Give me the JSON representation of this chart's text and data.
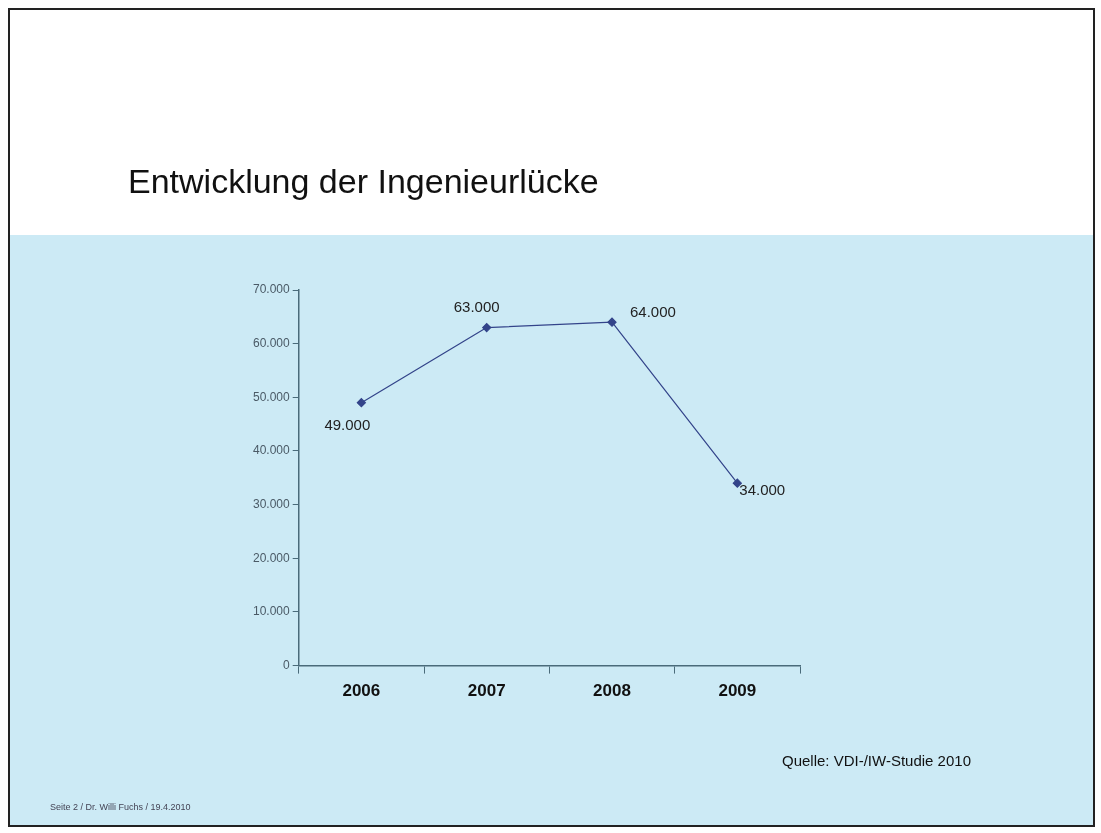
{
  "chart_data": {
    "type": "line",
    "title": "Entwicklung der Ingenieurlücke",
    "categories": [
      "2006",
      "2007",
      "2008",
      "2009"
    ],
    "values": [
      49000,
      63000,
      64000,
      34000
    ],
    "value_labels": [
      "49.000",
      "63.000",
      "64.000",
      "34.000"
    ],
    "color": "#33448a",
    "marker": "diamond",
    "line_style": "solid",
    "grid": false,
    "legend": false,
    "ylim": [
      0,
      70000
    ],
    "yticks": [
      0,
      {
        "value": 10000,
        "label": "10.000"
      },
      {
        "value": 20000,
        "label": "20.000"
      },
      {
        "value": 30000,
        "label": "30.000"
      },
      {
        "value": 40000,
        "label": "40.000"
      },
      {
        "value": 50000,
        "label": "50.000"
      },
      {
        "value": 60000,
        "label": "60.000"
      },
      {
        "value": 70000,
        "label": "70.000"
      }
    ],
    "annotations": [
      "Quelle: VDI-/IW-Studie 2010",
      "Seite 2 / Dr. Willi Fuchs / 19.4.2010"
    ]
  }
}
